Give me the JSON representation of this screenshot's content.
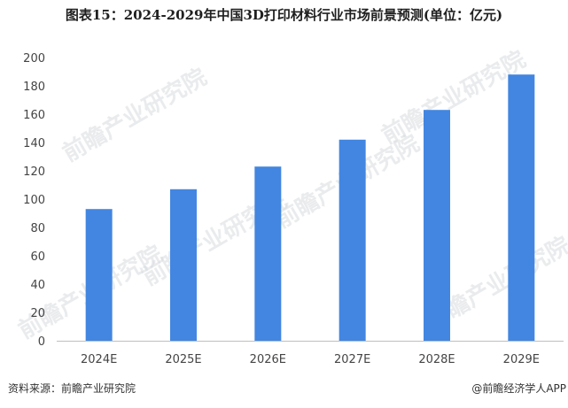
{
  "title": "图表15：2024-2029年中国3D打印材料行业市场前景预测(单位：亿元)",
  "source_label": "资料来源：前瞻产业研究院",
  "brand_label": "@前瞻经济学人APP",
  "watermark_text": "前瞻产业研究院",
  "chart_data": {
    "type": "bar",
    "categories": [
      "2024E",
      "2025E",
      "2026E",
      "2027E",
      "2028E",
      "2029E"
    ],
    "values": [
      93,
      107,
      123,
      142,
      163,
      188
    ],
    "ylim": [
      0,
      200
    ],
    "yticks": [
      0,
      20,
      40,
      60,
      80,
      100,
      120,
      140,
      160,
      180,
      200
    ],
    "bar_color": "#4286e1",
    "grid": false,
    "legend": "none"
  }
}
